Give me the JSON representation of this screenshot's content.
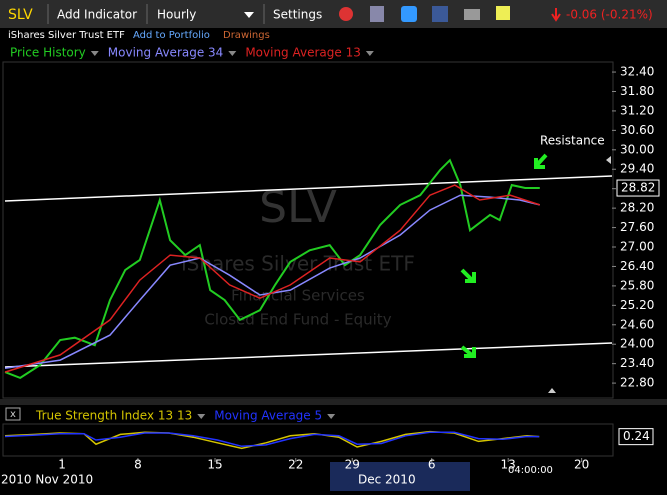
{
  "toolbar": {
    "symbol": "SLV",
    "add_indicator": "Add Indicator",
    "interval": "Hourly",
    "settings": "Settings",
    "change": "-0.06 (-0.21%)"
  },
  "info": {
    "name": "iShares Silver Trust ETF",
    "add_to_portfolio": "Add to Portfolio",
    "drawings": "Drawings"
  },
  "watermark": {
    "symbol": "SLV",
    "name": "iShares Silver Trust ETF",
    "sector": "Financial Services",
    "category": "Closed End Fund - Equity"
  },
  "annotation": "Resistance",
  "chart_data": [
    {
      "type": "line",
      "xlim": [
        0,
        100
      ],
      "ylim": [
        22.34,
        32.71
      ],
      "yticks": [
        {
          "value": 22.8,
          "label": "22.80"
        },
        {
          "value": 23.4,
          "label": "23.40"
        },
        {
          "value": 24,
          "label": "24.00"
        },
        {
          "value": 24.6,
          "label": "24.60"
        },
        {
          "value": 25.2,
          "label": "25.20"
        },
        {
          "value": 25.8,
          "label": "25.80"
        },
        {
          "value": 26.4,
          "label": "26.40"
        },
        {
          "value": 27,
          "label": "27.00"
        },
        {
          "value": 27.6,
          "label": "27.60"
        },
        {
          "value": 28.2,
          "label": "28.20"
        },
        {
          "value": 28.8,
          "label": "28.80"
        },
        {
          "value": 29.4,
          "label": "29.40"
        },
        {
          "value": 30,
          "label": "30.00"
        },
        {
          "value": 30.6,
          "label": "30.60"
        },
        {
          "value": 31.2,
          "label": "31.20"
        },
        {
          "value": 31.8,
          "label": "31.80"
        },
        {
          "value": 32.4,
          "label": "32.40"
        }
      ],
      "xticks": [
        {
          "value": 9.4,
          "label": "1"
        },
        {
          "value": 21.9,
          "label": "8"
        },
        {
          "value": 34.6,
          "label": "15"
        },
        {
          "value": 47.9,
          "label": "22"
        },
        {
          "value": 57.2,
          "label": "29"
        },
        {
          "value": 70.3,
          "label": "6"
        },
        {
          "value": 82.9,
          "label": "13"
        },
        {
          "value": 95,
          "label": "20"
        }
      ],
      "x_period_labels": [
        "2010 Nov 2010",
        "Dec 2010"
      ],
      "time_label": "04:00:00",
      "last_price": 28.82,
      "series": [
        {
          "name": "Price History",
          "color": "#22cc22",
          "x": [
            0,
            2.5,
            5.8,
            9.1,
            11.5,
            14.8,
            17.3,
            19.8,
            22.2,
            25.5,
            27.2,
            29.7,
            32.1,
            33.8,
            36.2,
            38.7,
            42,
            44.5,
            47,
            50.2,
            53.5,
            56,
            58.5,
            61.8,
            65.1,
            68.4,
            71.7,
            73.3,
            75,
            76.6,
            79.9,
            81.5,
            83.5,
            85.7,
            88.1
          ],
          "values": [
            23.14,
            22.96,
            23.36,
            24.13,
            24.2,
            23.97,
            25.36,
            26.29,
            26.6,
            28.45,
            27.21,
            26.75,
            27.06,
            25.67,
            25.36,
            24.75,
            25.05,
            25.83,
            26.54,
            26.9,
            27.06,
            26.44,
            26.75,
            27.68,
            28.3,
            28.6,
            29.38,
            29.68,
            28.91,
            27.52,
            27.99,
            27.83,
            28.91,
            28.82,
            28.82
          ]
        },
        {
          "name": "Moving Average 34",
          "color": "#8888ff",
          "x": [
            0,
            9.1,
            17.3,
            22.2,
            27.2,
            32.1,
            37,
            42,
            47,
            53.5,
            58.5,
            65.1,
            70,
            75,
            79.9,
            84.8,
            88.1
          ],
          "values": [
            23.26,
            23.51,
            24.28,
            25.36,
            26.44,
            26.66,
            26.13,
            25.52,
            25.67,
            26.35,
            26.66,
            27.37,
            28.14,
            28.6,
            28.54,
            28.45,
            28.3
          ]
        },
        {
          "name": "Moving Average 13",
          "color": "#dd2222",
          "x": [
            0,
            9.1,
            17.3,
            22.2,
            27.2,
            32.1,
            37,
            42,
            47,
            53.5,
            58.5,
            65.1,
            70,
            74.1,
            78.2,
            83.2,
            88.1
          ],
          "values": [
            23.14,
            23.67,
            24.75,
            25.98,
            26.75,
            26.66,
            25.83,
            25.42,
            25.83,
            26.66,
            26.54,
            27.52,
            28.6,
            28.91,
            28.45,
            28.6,
            28.3
          ]
        }
      ]
    },
    {
      "type": "line",
      "xlim": [
        0,
        100
      ],
      "ylim": [
        -1,
        1
      ],
      "last_value": 0.24,
      "series": [
        {
          "name": "True Strength Index 13 13",
          "color": "#d4c400",
          "x": [
            0,
            5,
            9,
            13,
            15,
            19,
            23,
            27,
            31,
            35,
            39,
            43,
            47,
            51,
            55,
            58,
            62,
            66,
            70,
            74,
            78,
            82,
            86,
            88
          ],
          "values": [
            0.3,
            0.4,
            0.5,
            0.45,
            -0.3,
            0.4,
            0.55,
            0.5,
            0.2,
            -0.2,
            -0.6,
            -0.2,
            0.3,
            0.45,
            0.2,
            -0.5,
            -0.1,
            0.4,
            0.6,
            0.5,
            -0.1,
            0.1,
            0.3,
            0.24
          ]
        },
        {
          "name": "Moving Average 5",
          "color": "#2233ff",
          "x": [
            0,
            5,
            9,
            13,
            15,
            19,
            23,
            27,
            31,
            35,
            39,
            43,
            47,
            51,
            55,
            58,
            62,
            66,
            70,
            74,
            78,
            82,
            86,
            88
          ],
          "values": [
            0.25,
            0.35,
            0.45,
            0.45,
            0.0,
            0.2,
            0.5,
            0.5,
            0.3,
            0.0,
            -0.45,
            -0.35,
            0.1,
            0.4,
            0.3,
            -0.3,
            -0.25,
            0.3,
            0.55,
            0.55,
            0.1,
            0.05,
            0.25,
            0.24
          ]
        }
      ]
    }
  ]
}
